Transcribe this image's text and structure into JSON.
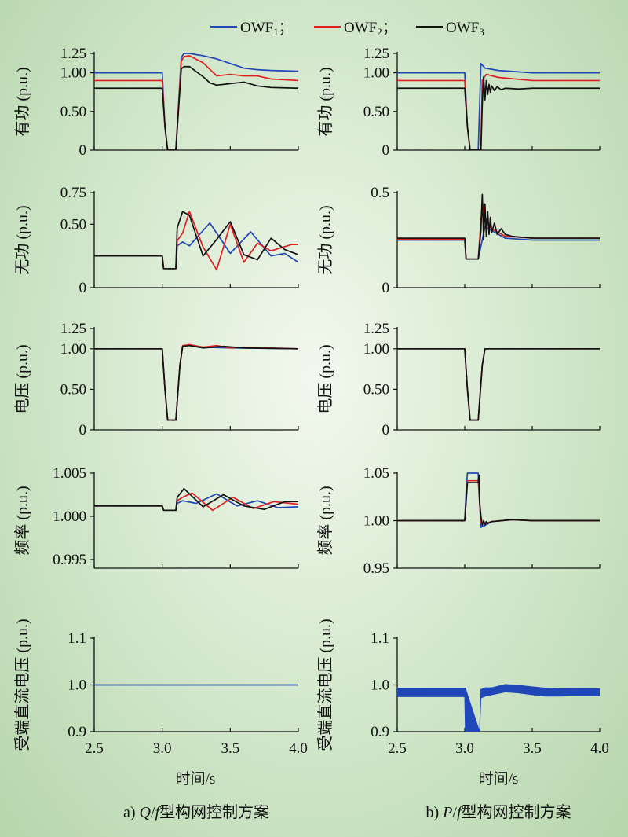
{
  "legend": {
    "items": [
      {
        "label": "OWF",
        "sub": "1",
        "sep": "；",
        "color": "#2047b8"
      },
      {
        "label": "OWF",
        "sub": "2",
        "sep": "；",
        "color": "#e0201f"
      },
      {
        "label": "OWF",
        "sub": "3",
        "sep": "",
        "color": "#111111"
      }
    ]
  },
  "xlabel": "时间/s",
  "captions": {
    "left": {
      "prefix": "a) ",
      "q": "Q",
      "slash": "/",
      "f": "f",
      "rest": "型构网控制方案"
    },
    "right": {
      "prefix": "b) ",
      "q": "P",
      "slash": "/",
      "f": "f",
      "rest": "型构网控制方案"
    }
  },
  "chart_data": [
    {
      "id": "a-active-power",
      "type": "line",
      "ylabel": "有功 (p.u.)",
      "xlim": [
        2.5,
        4.0
      ],
      "ylim": [
        0,
        1.25
      ],
      "yticks": [
        "0",
        "0.50",
        "1.00",
        "1.25"
      ],
      "xticks": [],
      "grid": false,
      "series": [
        {
          "name": "OWF1",
          "color": "#2047b8",
          "x": [
            2.5,
            3.0,
            3.02,
            3.04,
            3.1,
            3.14,
            3.16,
            3.2,
            3.3,
            3.4,
            3.5,
            3.6,
            3.7,
            3.8,
            4.0
          ],
          "y": [
            1.0,
            1.0,
            0.3,
            0.0,
            0.0,
            1.2,
            1.25,
            1.25,
            1.22,
            1.18,
            1.12,
            1.06,
            1.04,
            1.03,
            1.02
          ]
        },
        {
          "name": "OWF2",
          "color": "#e0201f",
          "x": [
            2.5,
            3.0,
            3.02,
            3.04,
            3.1,
            3.14,
            3.16,
            3.2,
            3.3,
            3.4,
            3.5,
            3.6,
            3.7,
            3.8,
            3.9,
            4.0
          ],
          "y": [
            0.9,
            0.9,
            0.3,
            0.0,
            0.0,
            1.15,
            1.21,
            1.22,
            1.13,
            0.96,
            0.98,
            0.96,
            0.96,
            0.92,
            0.91,
            0.9
          ]
        },
        {
          "name": "OWF3",
          "color": "#111111",
          "x": [
            2.5,
            3.0,
            3.02,
            3.04,
            3.1,
            3.14,
            3.16,
            3.2,
            3.3,
            3.35,
            3.4,
            3.5,
            3.6,
            3.7,
            3.8,
            4.0
          ],
          "y": [
            0.8,
            0.8,
            0.3,
            0.0,
            0.0,
            1.05,
            1.08,
            1.08,
            0.95,
            0.87,
            0.84,
            0.86,
            0.88,
            0.83,
            0.81,
            0.8
          ]
        }
      ]
    },
    {
      "id": "b-active-power",
      "type": "line",
      "ylabel": "有功 (p.u.)",
      "xlim": [
        2.5,
        4.0
      ],
      "ylim": [
        0,
        1.25
      ],
      "yticks": [
        "0",
        "0.50",
        "1.00",
        "1.25"
      ],
      "xticks": [],
      "grid": false,
      "series": [
        {
          "name": "OWF1",
          "color": "#2047b8",
          "x": [
            2.5,
            3.0,
            3.02,
            3.04,
            3.1,
            3.12,
            3.15,
            3.25,
            3.5,
            4.0
          ],
          "y": [
            1.0,
            1.0,
            0.3,
            0.0,
            0.0,
            1.12,
            1.06,
            1.03,
            1.0,
            1.0
          ]
        },
        {
          "name": "OWF2",
          "color": "#e0201f",
          "x": [
            2.5,
            3.0,
            3.02,
            3.04,
            3.12,
            3.13,
            3.16,
            3.25,
            3.5,
            4.0
          ],
          "y": [
            0.9,
            0.9,
            0.3,
            0.0,
            0.0,
            0.9,
            0.98,
            0.94,
            0.9,
            0.9
          ]
        },
        {
          "name": "OWF3",
          "color": "#111111",
          "x": [
            2.5,
            3.0,
            3.02,
            3.04,
            3.12,
            3.13,
            3.14,
            3.15,
            3.16,
            3.17,
            3.18,
            3.19,
            3.2,
            3.22,
            3.24,
            3.27,
            3.3,
            3.4,
            3.5,
            4.0
          ],
          "y": [
            0.8,
            0.8,
            0.3,
            0.0,
            0.0,
            0.6,
            0.95,
            0.65,
            0.9,
            0.72,
            0.85,
            0.75,
            0.83,
            0.77,
            0.82,
            0.78,
            0.8,
            0.79,
            0.8,
            0.8
          ]
        }
      ]
    },
    {
      "id": "a-reactive-power",
      "type": "line",
      "ylabel": "无功 (p.u.)",
      "xlim": [
        2.5,
        4.0
      ],
      "ylim": [
        0,
        0.75
      ],
      "yticks": [
        "0",
        "0.50",
        "0.75"
      ],
      "xticks": [],
      "grid": false,
      "series": [
        {
          "name": "OWF1",
          "color": "#2047b8",
          "x": [
            2.5,
            3.0,
            3.01,
            3.1,
            3.11,
            3.15,
            3.2,
            3.35,
            3.5,
            3.65,
            3.8,
            3.9,
            4.0
          ],
          "y": [
            0.25,
            0.25,
            0.15,
            0.15,
            0.33,
            0.36,
            0.33,
            0.51,
            0.27,
            0.44,
            0.25,
            0.27,
            0.2
          ]
        },
        {
          "name": "OWF2",
          "color": "#e0201f",
          "x": [
            2.5,
            3.0,
            3.01,
            3.1,
            3.11,
            3.15,
            3.2,
            3.3,
            3.4,
            3.5,
            3.6,
            3.7,
            3.8,
            3.95,
            4.0
          ],
          "y": [
            0.25,
            0.25,
            0.15,
            0.15,
            0.37,
            0.43,
            0.6,
            0.32,
            0.14,
            0.5,
            0.2,
            0.35,
            0.29,
            0.34,
            0.34
          ]
        },
        {
          "name": "OWF3",
          "color": "#111111",
          "x": [
            2.5,
            3.0,
            3.01,
            3.1,
            3.11,
            3.15,
            3.2,
            3.3,
            3.4,
            3.5,
            3.6,
            3.7,
            3.8,
            3.9,
            4.0
          ],
          "y": [
            0.25,
            0.25,
            0.15,
            0.15,
            0.47,
            0.6,
            0.57,
            0.25,
            0.38,
            0.52,
            0.26,
            0.22,
            0.39,
            0.3,
            0.26
          ]
        }
      ]
    },
    {
      "id": "b-reactive-power",
      "type": "line",
      "ylabel": "无功 (p.u.)",
      "xlim": [
        2.5,
        4.0
      ],
      "ylim": [
        0,
        0.5
      ],
      "yticks": [
        "0",
        "0.5"
      ],
      "xticks": [],
      "grid": false,
      "series": [
        {
          "name": "OWF1",
          "color": "#2047b8",
          "x": [
            2.5,
            3.0,
            3.01,
            3.1,
            3.15,
            3.2,
            3.3,
            3.5,
            4.0
          ],
          "y": [
            0.25,
            0.25,
            0.15,
            0.15,
            0.32,
            0.3,
            0.26,
            0.25,
            0.25
          ]
        },
        {
          "name": "OWF2",
          "color": "#e0201f",
          "x": [
            2.5,
            3.0,
            3.01,
            3.1,
            3.13,
            3.16,
            3.2,
            3.3,
            3.5,
            4.0
          ],
          "y": [
            0.255,
            0.255,
            0.15,
            0.15,
            0.45,
            0.35,
            0.31,
            0.27,
            0.26,
            0.26
          ]
        },
        {
          "name": "OWF3",
          "color": "#111111",
          "x": [
            2.5,
            3.0,
            3.01,
            3.1,
            3.12,
            3.13,
            3.14,
            3.15,
            3.16,
            3.17,
            3.18,
            3.19,
            3.2,
            3.22,
            3.24,
            3.27,
            3.3,
            3.35,
            3.5,
            4.0
          ],
          "y": [
            0.26,
            0.26,
            0.15,
            0.15,
            0.3,
            0.49,
            0.25,
            0.44,
            0.27,
            0.4,
            0.28,
            0.37,
            0.29,
            0.34,
            0.28,
            0.31,
            0.28,
            0.27,
            0.26,
            0.26
          ]
        }
      ]
    },
    {
      "id": "a-voltage",
      "type": "line",
      "ylabel": "电压 (p.u.)",
      "xlim": [
        2.5,
        4.0
      ],
      "ylim": [
        0,
        1.25
      ],
      "yticks": [
        "0",
        "0.50",
        "1.00",
        "1.25"
      ],
      "xticks": [],
      "grid": false,
      "series": [
        {
          "name": "OWF1",
          "color": "#2047b8",
          "x": [
            2.5,
            3.0,
            3.02,
            3.04,
            3.1,
            3.13,
            3.15,
            3.2,
            3.3,
            3.5,
            4.0
          ],
          "y": [
            1.0,
            1.0,
            0.5,
            0.12,
            0.12,
            0.8,
            1.03,
            1.05,
            1.02,
            1.01,
            1.0
          ]
        },
        {
          "name": "OWF2",
          "color": "#e0201f",
          "x": [
            2.5,
            3.0,
            3.02,
            3.04,
            3.1,
            3.13,
            3.15,
            3.2,
            3.3,
            3.4,
            3.5,
            3.6,
            4.0
          ],
          "y": [
            1.0,
            1.0,
            0.5,
            0.12,
            0.12,
            0.8,
            1.04,
            1.05,
            1.02,
            1.04,
            1.01,
            1.02,
            1.0
          ]
        },
        {
          "name": "OWF3",
          "color": "#111111",
          "x": [
            2.5,
            3.0,
            3.02,
            3.04,
            3.1,
            3.13,
            3.15,
            3.2,
            3.3,
            3.45,
            3.6,
            4.0
          ],
          "y": [
            1.0,
            1.0,
            0.5,
            0.12,
            0.12,
            0.8,
            1.03,
            1.04,
            1.01,
            1.03,
            1.01,
            1.0
          ]
        }
      ]
    },
    {
      "id": "b-voltage",
      "type": "line",
      "ylabel": "电压 (p.u.)",
      "xlim": [
        2.5,
        4.0
      ],
      "ylim": [
        0,
        1.25
      ],
      "yticks": [
        "0",
        "0.50",
        "1.00",
        "1.25"
      ],
      "xticks": [],
      "grid": false,
      "series": [
        {
          "name": "OWF1",
          "color": "#2047b8",
          "x": [
            2.5,
            3.0,
            3.02,
            3.04,
            3.1,
            3.13,
            3.15,
            3.2,
            4.0
          ],
          "y": [
            1.0,
            1.0,
            0.5,
            0.12,
            0.12,
            0.8,
            1.0,
            1.0,
            1.0
          ]
        },
        {
          "name": "OWF2",
          "color": "#e0201f",
          "x": [
            2.5,
            3.0,
            3.02,
            3.04,
            3.1,
            3.13,
            3.15,
            3.2,
            4.0
          ],
          "y": [
            1.0,
            1.0,
            0.5,
            0.12,
            0.12,
            0.8,
            1.0,
            1.0,
            1.0
          ]
        },
        {
          "name": "OWF3",
          "color": "#111111",
          "x": [
            2.5,
            3.0,
            3.02,
            3.04,
            3.1,
            3.13,
            3.15,
            3.2,
            4.0
          ],
          "y": [
            1.0,
            1.0,
            0.5,
            0.12,
            0.12,
            0.8,
            1.0,
            1.0,
            1.0
          ]
        }
      ]
    },
    {
      "id": "a-frequency",
      "type": "line",
      "ylabel": "频率 (p.u.)",
      "xlim": [
        2.5,
        4.0
      ],
      "ylim": [
        0.994,
        1.005
      ],
      "yticks": [
        "0.995",
        "1.000",
        "1.005"
      ],
      "xticks": [],
      "grid": false,
      "series": [
        {
          "name": "OWF1",
          "color": "#2047b8",
          "x": [
            2.5,
            3.0,
            3.01,
            3.1,
            3.11,
            3.15,
            3.25,
            3.4,
            3.55,
            3.7,
            3.85,
            4.0
          ],
          "y": [
            1.0012,
            1.0012,
            1.0007,
            1.0007,
            1.0015,
            1.0018,
            1.0015,
            1.0026,
            1.0012,
            1.0018,
            1.001,
            1.0011
          ]
        },
        {
          "name": "OWF2",
          "color": "#e0201f",
          "x": [
            2.5,
            3.0,
            3.01,
            3.1,
            3.11,
            3.15,
            3.22,
            3.37,
            3.52,
            3.67,
            3.82,
            4.0
          ],
          "y": [
            1.0012,
            1.0012,
            1.0007,
            1.0007,
            1.0018,
            1.0022,
            1.0027,
            1.0007,
            1.0022,
            1.0009,
            1.0017,
            1.0014
          ]
        },
        {
          "name": "OWF3",
          "color": "#111111",
          "x": [
            2.5,
            3.0,
            3.01,
            3.1,
            3.11,
            3.16,
            3.3,
            3.45,
            3.6,
            3.75,
            3.9,
            4.0
          ],
          "y": [
            1.0012,
            1.0012,
            1.0007,
            1.0007,
            1.0022,
            1.0032,
            1.0011,
            1.0025,
            1.0012,
            1.0008,
            1.0017,
            1.0017
          ]
        }
      ]
    },
    {
      "id": "b-frequency",
      "type": "line",
      "ylabel": "频率 (p.u.)",
      "xlim": [
        2.5,
        4.0
      ],
      "ylim": [
        0.95,
        1.05
      ],
      "yticks": [
        "0.95",
        "1.00",
        "1.05"
      ],
      "xticks": [],
      "grid": false,
      "series": [
        {
          "name": "OWF1",
          "color": "#2047b8",
          "x": [
            2.5,
            3.0,
            3.01,
            3.02,
            3.1,
            3.11,
            3.12,
            3.15,
            3.2,
            3.35,
            3.5,
            4.0
          ],
          "y": [
            1.0,
            1.0,
            1.03,
            1.05,
            1.05,
            1.02,
            0.993,
            0.995,
            0.999,
            1.001,
            1.0,
            1.0
          ]
        },
        {
          "name": "OWF2",
          "color": "#e0201f",
          "x": [
            2.5,
            3.0,
            3.01,
            3.02,
            3.1,
            3.11,
            3.12,
            3.15,
            3.2,
            3.35,
            3.5,
            4.0
          ],
          "y": [
            1.0,
            1.0,
            1.02,
            1.042,
            1.042,
            1.02,
            0.998,
            0.997,
            0.999,
            1.001,
            1.0,
            1.0
          ]
        },
        {
          "name": "OWF3",
          "color": "#111111",
          "x": [
            2.5,
            3.0,
            3.01,
            3.02,
            3.1,
            3.105,
            3.11,
            3.12,
            3.13,
            3.14,
            3.15,
            3.16,
            3.17,
            3.2,
            3.35,
            3.5,
            4.0
          ],
          "y": [
            1.0,
            1.0,
            1.02,
            1.04,
            1.04,
            1.048,
            1.02,
            1.005,
            0.995,
            1.0,
            0.996,
            0.999,
            0.997,
            0.999,
            1.001,
            1.0,
            1.0
          ]
        }
      ]
    },
    {
      "id": "a-dc-voltage",
      "type": "line",
      "ylabel": "受端直流电压 (p.u.)",
      "xlim": [
        2.5,
        4.0
      ],
      "ylim": [
        0.9,
        1.1
      ],
      "yticks": [
        "0.9",
        "1.0",
        "1.1"
      ],
      "xticks": [
        "2.5",
        "3.0",
        "3.5",
        "4.0"
      ],
      "grid": false,
      "series": [
        {
          "color": "#2047b8",
          "x": [
            2.5,
            4.0
          ],
          "y": [
            1.0,
            1.0
          ]
        }
      ]
    },
    {
      "id": "b-dc-voltage",
      "type": "line",
      "ylabel": "受端直流电压 (p.u.)",
      "xlim": [
        2.5,
        4.0
      ],
      "ylim": [
        0.9,
        1.1
      ],
      "yticks": [
        "0.9",
        "1.0",
        "1.1"
      ],
      "xticks": [
        "2.5",
        "3.0",
        "3.5",
        "4.0"
      ],
      "grid": false,
      "series": [
        {
          "color": "#2047b8",
          "band": true,
          "x": [
            2.5,
            3.0,
            3.005,
            3.11,
            3.12,
            3.15,
            3.2,
            3.3,
            3.4,
            3.5,
            3.6,
            3.7,
            3.8,
            3.9,
            4.0
          ],
          "lo": [
            0.975,
            0.975,
            0.9,
            0.9,
            0.972,
            0.976,
            0.979,
            0.985,
            0.983,
            0.979,
            0.976,
            0.976,
            0.977,
            0.977,
            0.977
          ],
          "hi": [
            0.993,
            0.993,
            0.993,
            0.9,
            0.99,
            0.994,
            0.994,
            1.001,
            0.999,
            0.996,
            0.993,
            0.992,
            0.992,
            0.992,
            0.992
          ]
        }
      ]
    }
  ]
}
